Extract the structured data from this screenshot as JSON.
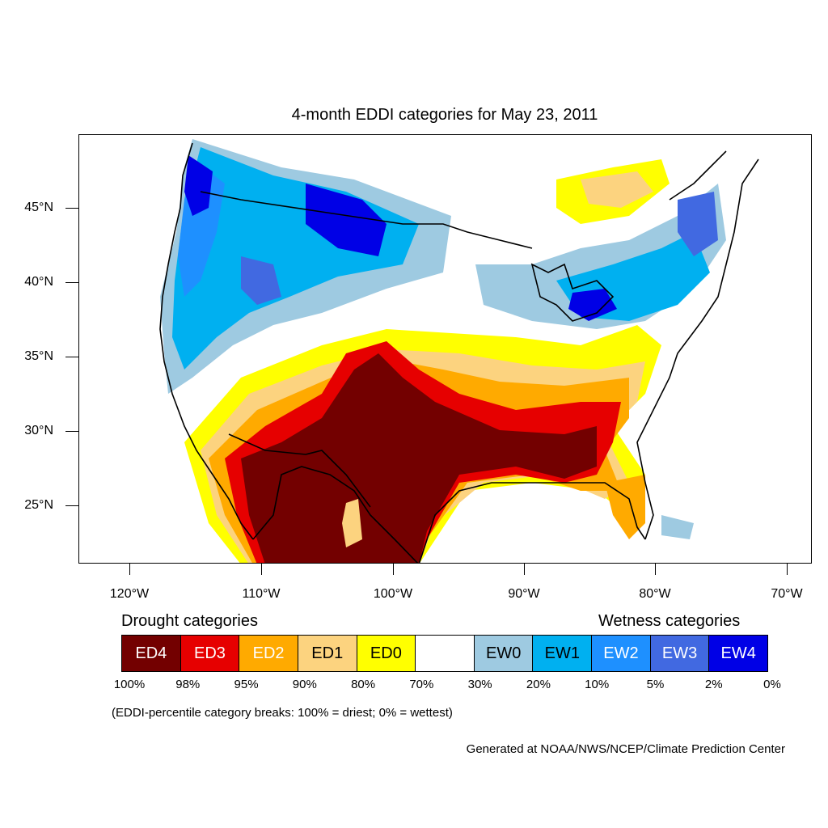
{
  "title": "4-month EDDI categories for May 23, 2011",
  "lat_labels": [
    "45°N",
    "40°N",
    "35°N",
    "30°N",
    "25°N"
  ],
  "lon_labels": [
    "120°W",
    "110°W",
    "100°W",
    "90°W",
    "80°W",
    "70°W"
  ],
  "legend": {
    "drought_heading": "Drought categories",
    "wetness_heading": "Wetness categories",
    "categories": [
      {
        "label": "ED4",
        "color": "#730000",
        "text_color": "#ffffff"
      },
      {
        "label": "ED3",
        "color": "#e60000",
        "text_color": "#ffffff"
      },
      {
        "label": "ED2",
        "color": "#ffaa00",
        "text_color": "#ffffff"
      },
      {
        "label": "ED1",
        "color": "#fcd37f",
        "text_color": "#000000"
      },
      {
        "label": "ED0",
        "color": "#ffff00",
        "text_color": "#000000"
      },
      {
        "label": "",
        "color": "#ffffff",
        "text_color": "#000000"
      },
      {
        "label": "EW0",
        "color": "#9ecae1",
        "text_color": "#000000"
      },
      {
        "label": "EW1",
        "color": "#00b0f0",
        "text_color": "#000000"
      },
      {
        "label": "EW2",
        "color": "#1e90ff",
        "text_color": "#ffffff"
      },
      {
        "label": "EW3",
        "color": "#4169e1",
        "text_color": "#ffffff"
      },
      {
        "label": "EW4",
        "color": "#0000e6",
        "text_color": "#ffffff"
      }
    ],
    "percentiles": [
      "100%",
      "98%",
      "95%",
      "90%",
      "80%",
      "70%",
      "30%",
      "20%",
      "10%",
      "5%",
      "2%",
      "0%"
    ]
  },
  "note": "(EDDI-percentile category breaks: 100% = driest; 0% = wettest)",
  "credit": "Generated at NOAA/NWS/NCEP/Climate Prediction Center"
}
